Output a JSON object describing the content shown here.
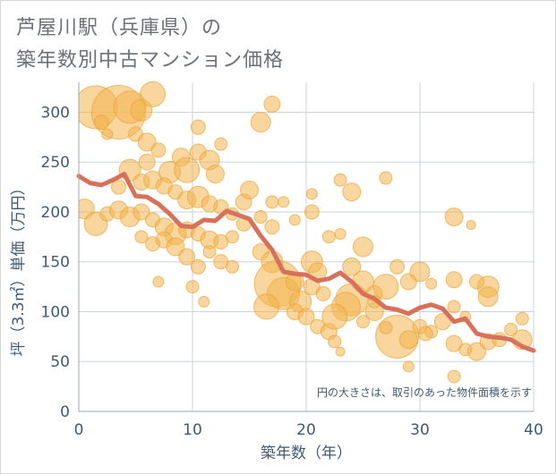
{
  "title_line1": "芦屋川駅（兵庫県）の",
  "title_line2": "築年数別中古マンション価格",
  "note": "円の大きさは、取引のあった物件面積を示す",
  "colors": {
    "bubble_fill": "#f2b54d",
    "bubble_stroke": "#e9a43a",
    "line": "#d9705a",
    "grid": "#c8d3de",
    "text": "#3f5a72"
  },
  "chart_data": {
    "type": "scatter",
    "xlabel": "築年数（年）",
    "ylabel": "坪（3.3㎡）単価（万円）",
    "xlim": [
      0,
      40
    ],
    "ylim": [
      0,
      330
    ],
    "xticks": [
      "0",
      "10",
      "20",
      "30",
      "40"
    ],
    "yticks": [
      "0",
      "50",
      "100",
      "150",
      "200",
      "250",
      "300"
    ],
    "grid": true,
    "bubbles": [
      [
        1.5,
        305,
        24
      ],
      [
        3.5,
        300,
        30
      ],
      [
        4.5,
        305,
        18
      ],
      [
        5.5,
        302,
        12
      ],
      [
        6.5,
        318,
        14
      ],
      [
        5,
        278,
        8
      ],
      [
        2.5,
        278,
        6
      ],
      [
        6,
        270,
        10
      ],
      [
        7,
        262,
        8
      ],
      [
        6,
        250,
        9
      ],
      [
        8,
        240,
        12
      ],
      [
        9,
        255,
        10
      ],
      [
        9.5,
        242,
        14
      ],
      [
        10.5,
        260,
        9
      ],
      [
        11.5,
        252,
        11
      ],
      [
        12.5,
        268,
        7
      ],
      [
        10.5,
        285,
        8
      ],
      [
        12,
        238,
        10
      ],
      [
        4.5,
        242,
        12
      ],
      [
        5.5,
        230,
        9
      ],
      [
        3.5,
        225,
        8
      ],
      [
        6.5,
        232,
        10
      ],
      [
        7.5,
        226,
        9
      ],
      [
        8.5,
        220,
        8
      ],
      [
        9.5,
        212,
        10
      ],
      [
        10.5,
        215,
        12
      ],
      [
        11.5,
        208,
        9
      ],
      [
        12.5,
        205,
        8
      ],
      [
        13.5,
        198,
        7
      ],
      [
        14.5,
        210,
        9
      ],
      [
        0.5,
        203,
        11
      ],
      [
        1.5,
        188,
        13
      ],
      [
        2.5,
        198,
        8
      ],
      [
        3.5,
        202,
        10
      ],
      [
        4.5,
        195,
        11
      ],
      [
        5.5,
        200,
        9
      ],
      [
        6.5,
        192,
        8
      ],
      [
        7.5,
        185,
        10
      ],
      [
        8.5,
        178,
        12
      ],
      [
        9.5,
        182,
        9
      ],
      [
        10.5,
        178,
        8
      ],
      [
        11.5,
        172,
        10
      ],
      [
        12.5,
        170,
        8
      ],
      [
        13.5,
        175,
        7
      ],
      [
        14.5,
        188,
        8
      ],
      [
        5.5,
        175,
        7
      ],
      [
        6.5,
        168,
        8
      ],
      [
        7.5,
        172,
        9
      ],
      [
        8.5,
        165,
        10
      ],
      [
        9.5,
        155,
        9
      ],
      [
        10.5,
        145,
        8
      ],
      [
        11.5,
        160,
        7
      ],
      [
        12.5,
        150,
        8
      ],
      [
        13.5,
        145,
        7
      ],
      [
        7,
        130,
        6
      ],
      [
        10,
        125,
        7
      ],
      [
        11,
        110,
        6
      ],
      [
        16,
        290,
        11
      ],
      [
        17,
        308,
        9
      ],
      [
        15,
        222,
        10
      ],
      [
        17,
        210,
        7
      ],
      [
        18,
        210,
        6
      ],
      [
        16,
        195,
        7
      ],
      [
        17,
        185,
        8
      ],
      [
        19,
        192,
        6
      ],
      [
        16,
        160,
        9
      ],
      [
        17,
        150,
        12
      ],
      [
        17.5,
        128,
        26
      ],
      [
        18,
        118,
        18
      ],
      [
        16.5,
        105,
        14
      ],
      [
        19,
        130,
        10
      ],
      [
        19.5,
        110,
        12
      ],
      [
        19,
        100,
        9
      ],
      [
        20.5,
        150,
        12
      ],
      [
        21,
        140,
        10
      ],
      [
        20.5,
        125,
        9
      ],
      [
        21.5,
        118,
        8
      ],
      [
        20,
        95,
        9
      ],
      [
        21,
        85,
        8
      ],
      [
        22,
        80,
        9
      ],
      [
        22.5,
        70,
        7
      ],
      [
        23,
        60,
        5
      ],
      [
        24,
        220,
        10
      ],
      [
        23,
        232,
        7
      ],
      [
        20.5,
        218,
        6
      ],
      [
        20.5,
        200,
        8
      ],
      [
        22,
        175,
        7
      ],
      [
        23,
        178,
        6
      ],
      [
        25,
        165,
        11
      ],
      [
        24,
        145,
        10
      ],
      [
        25,
        130,
        12
      ],
      [
        24,
        112,
        18
      ],
      [
        26,
        118,
        9
      ],
      [
        26,
        100,
        10
      ],
      [
        25,
        90,
        7
      ],
      [
        27,
        125,
        14
      ],
      [
        27,
        234,
        7
      ],
      [
        28,
        145,
        8
      ],
      [
        29,
        130,
        9
      ],
      [
        30,
        140,
        11
      ],
      [
        28,
        75,
        24
      ],
      [
        29,
        72,
        10
      ],
      [
        30,
        85,
        8
      ],
      [
        31,
        80,
        7
      ],
      [
        29,
        45,
        6
      ],
      [
        32,
        90,
        9
      ],
      [
        33,
        195,
        10
      ],
      [
        33,
        132,
        9
      ],
      [
        33,
        105,
        7
      ],
      [
        34,
        95,
        6
      ],
      [
        33,
        68,
        9
      ],
      [
        34,
        62,
        7
      ],
      [
        34.5,
        187,
        5
      ],
      [
        35,
        60,
        10
      ],
      [
        36,
        70,
        9
      ],
      [
        36,
        125,
        12
      ],
      [
        36,
        115,
        11
      ],
      [
        37,
        72,
        8
      ],
      [
        38,
        82,
        7
      ],
      [
        39,
        93,
        7
      ],
      [
        39,
        72,
        11
      ],
      [
        33,
        35,
        7
      ],
      [
        35,
        130,
        8
      ],
      [
        31,
        128,
        6
      ],
      [
        2,
        290,
        8
      ],
      [
        26,
        110,
        7
      ],
      [
        27,
        84,
        7
      ],
      [
        30.5,
        78,
        8
      ],
      [
        23.5,
        105,
        16
      ],
      [
        22.5,
        95,
        14
      ]
    ],
    "trend": {
      "x": [
        0,
        1,
        2,
        3,
        4,
        5,
        6,
        7,
        8,
        9,
        10,
        11,
        12,
        13,
        14,
        15,
        16,
        17,
        18,
        19,
        20,
        21,
        22,
        23,
        24,
        25,
        26,
        27,
        28,
        29,
        30,
        31,
        32,
        33,
        34,
        35,
        36,
        37,
        38,
        39,
        40
      ],
      "y": [
        236,
        229,
        227,
        232,
        238,
        216,
        215,
        208,
        198,
        186,
        185,
        192,
        191,
        201,
        197,
        193,
        176,
        162,
        140,
        138,
        137,
        131,
        133,
        139,
        130,
        118,
        113,
        104,
        102,
        98,
        104,
        107,
        103,
        90,
        93,
        78,
        75,
        74,
        72,
        65,
        61
      ]
    }
  }
}
